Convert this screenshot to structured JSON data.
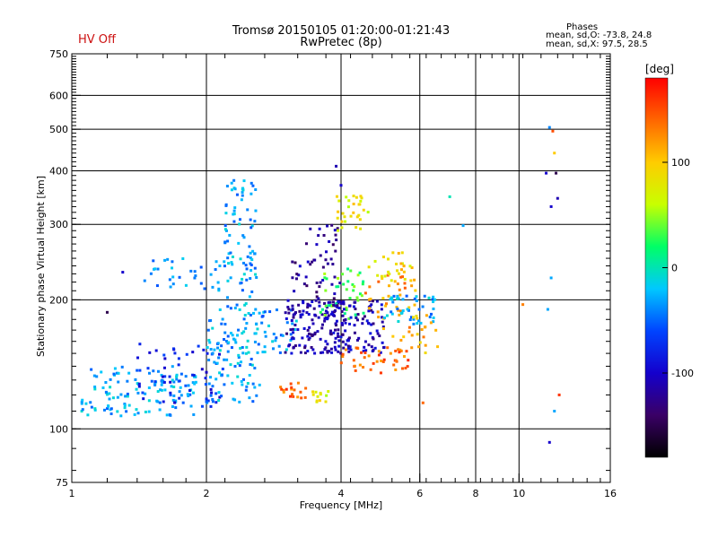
{
  "status": "HV Off",
  "phases": {
    "heading": "Phases",
    "o_line": "mean, sd,O: -73.8, 24.8",
    "x_line": "mean, sd,X:  97.5, 28.5"
  },
  "colorbar": {
    "title": "[deg]",
    "ticks": [
      {
        "value": 100,
        "label": "100"
      },
      {
        "value": 0,
        "label": "0"
      },
      {
        "value": -100,
        "label": "-100"
      }
    ],
    "range": [
      -180,
      180
    ],
    "colors": [
      "#000000",
      "#3a0066",
      "#1400cc",
      "#0044ff",
      "#00c8ff",
      "#00ff66",
      "#c8ff00",
      "#ffcc00",
      "#ff6600",
      "#ff0000"
    ]
  },
  "chart_data": {
    "type": "scatter",
    "title": "Tromsø 20150105 01:20:00-01:21:43",
    "subtitle": "RwPretec (8p)",
    "xlabel": "Frequency [MHz]",
    "ylabel": "Stationary phase Virtual Height [km]",
    "x_scale": "log",
    "y_scale": "log",
    "xlim": [
      1,
      16
    ],
    "ylim": [
      75,
      750
    ],
    "x_ticks": [
      {
        "value": 1,
        "label": "1"
      },
      {
        "value": 2,
        "label": "2"
      },
      {
        "value": 4,
        "label": "4"
      },
      {
        "value": 6,
        "label": "6"
      },
      {
        "value": 8,
        "label": "8"
      },
      {
        "value": 10,
        "label": "10"
      },
      {
        "value": 16,
        "label": "16"
      }
    ],
    "y_ticks": [
      {
        "value": 75,
        "label": "75"
      },
      {
        "value": 100,
        "label": "100"
      },
      {
        "value": 200,
        "label": "200"
      },
      {
        "value": 300,
        "label": "300"
      },
      {
        "value": 400,
        "label": "400"
      },
      {
        "value": 500,
        "label": "500"
      },
      {
        "value": 600,
        "label": "600"
      },
      {
        "value": 750,
        "label": "750"
      }
    ],
    "grid_x": [
      2,
      4,
      6,
      8,
      10
    ],
    "grid_y": [
      100,
      200,
      300,
      400,
      500,
      600
    ],
    "color_by": "phase",
    "clusters": [
      {
        "x": [
          1.05,
          1.9
        ],
        "y": [
          107,
          140
        ],
        "phase": -30,
        "n": 130
      },
      {
        "x": [
          1.4,
          2.2
        ],
        "y": [
          112,
          160
        ],
        "phase": -80,
        "n": 55
      },
      {
        "x": [
          1.45,
          2.2
        ],
        "y": [
          210,
          250
        ],
        "phase": -40,
        "n": 35
      },
      {
        "x": [
          2.0,
          2.65
        ],
        "y": [
          115,
          190
        ],
        "phase": -30,
        "n": 110
      },
      {
        "x": [
          2.2,
          2.6
        ],
        "y": [
          185,
          390
        ],
        "phase": -30,
        "n": 90
      },
      {
        "x": [
          2.6,
          3.2
        ],
        "y": [
          150,
          190
        ],
        "phase": -35,
        "n": 30
      },
      {
        "x": [
          3.0,
          4.1
        ],
        "y": [
          150,
          200
        ],
        "phase": -110,
        "n": 140
      },
      {
        "x": [
          3.1,
          4.0
        ],
        "y": [
          200,
          300
        ],
        "phase": -120,
        "n": 50
      },
      {
        "x": [
          3.6,
          4.6
        ],
        "y": [
          180,
          240
        ],
        "phase": 30,
        "n": 40
      },
      {
        "x": [
          3.9,
          4.6
        ],
        "y": [
          290,
          350
        ],
        "phase": 80,
        "n": 30
      },
      {
        "x": [
          3.8,
          5.0
        ],
        "y": [
          150,
          200
        ],
        "phase": -110,
        "n": 90
      },
      {
        "x": [
          3.9,
          5.7
        ],
        "y": [
          135,
          155
        ],
        "phase": 140,
        "n": 45
      },
      {
        "x": [
          4.5,
          5.9
        ],
        "y": [
          160,
          230
        ],
        "phase": 120,
        "n": 40
      },
      {
        "x": [
          5.0,
          6.5
        ],
        "y": [
          175,
          205
        ],
        "phase": -30,
        "n": 45
      },
      {
        "x": [
          5.5,
          6.6
        ],
        "y": [
          150,
          185
        ],
        "phase": 110,
        "n": 18
      },
      {
        "x": [
          2.9,
          3.4
        ],
        "y": [
          118,
          128
        ],
        "phase": 140,
        "n": 18
      },
      {
        "x": [
          3.4,
          3.8
        ],
        "y": [
          115,
          123
        ],
        "phase": 75,
        "n": 12
      },
      {
        "x": [
          4.6,
          5.8
        ],
        "y": [
          220,
          260
        ],
        "phase": 90,
        "n": 25
      }
    ],
    "points": [
      {
        "x": 11.7,
        "y": 505,
        "phase": -40
      },
      {
        "x": 11.9,
        "y": 495,
        "phase": 150
      },
      {
        "x": 12.0,
        "y": 440,
        "phase": 100
      },
      {
        "x": 11.5,
        "y": 395,
        "phase": -100
      },
      {
        "x": 12.1,
        "y": 395,
        "phase": -150
      },
      {
        "x": 11.8,
        "y": 330,
        "phase": -100
      },
      {
        "x": 12.2,
        "y": 345,
        "phase": -110
      },
      {
        "x": 11.6,
        "y": 190,
        "phase": -30
      },
      {
        "x": 11.8,
        "y": 225,
        "phase": -30
      },
      {
        "x": 12.3,
        "y": 120,
        "phase": 160
      },
      {
        "x": 12.0,
        "y": 110,
        "phase": -30
      },
      {
        "x": 11.7,
        "y": 93,
        "phase": -100
      },
      {
        "x": 10.2,
        "y": 195,
        "phase": 130
      },
      {
        "x": 7.0,
        "y": 348,
        "phase": 0
      },
      {
        "x": 7.5,
        "y": 298,
        "phase": -30
      },
      {
        "x": 3.9,
        "y": 410,
        "phase": -110
      },
      {
        "x": 4.0,
        "y": 370,
        "phase": -100
      },
      {
        "x": 1.2,
        "y": 187,
        "phase": -150
      },
      {
        "x": 1.3,
        "y": 232,
        "phase": -100
      },
      {
        "x": 6.1,
        "y": 115,
        "phase": 140
      }
    ]
  }
}
